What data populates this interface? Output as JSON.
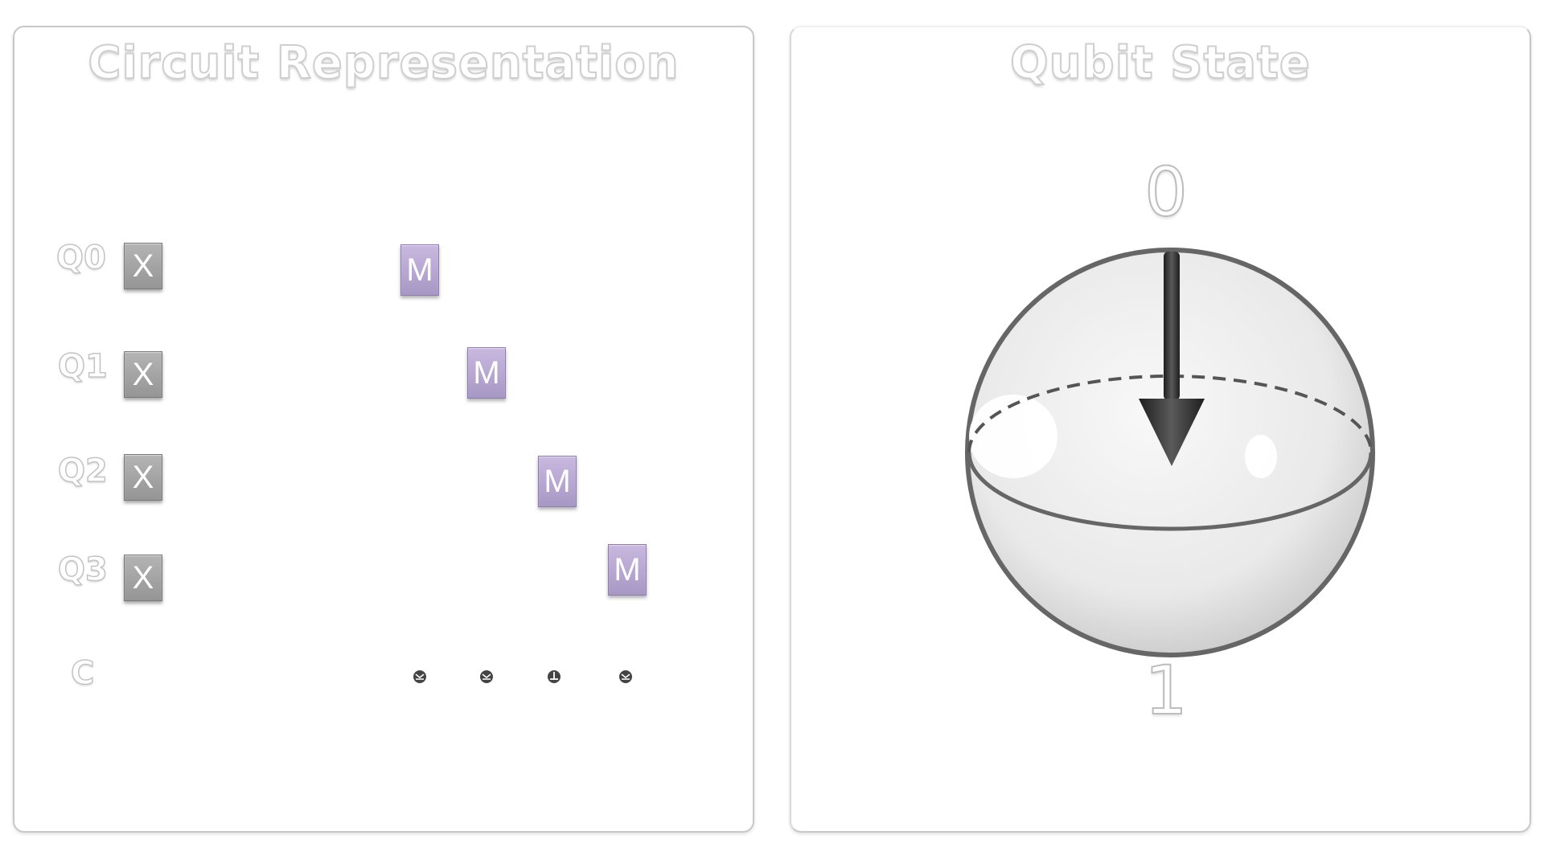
{
  "circuit": {
    "title": "Circuit Representation",
    "qubits": [
      {
        "label": "Q0",
        "gate": "X",
        "measure": "M"
      },
      {
        "label": "Q1",
        "gate": "X",
        "measure": "M"
      },
      {
        "label": "Q2",
        "gate": "X",
        "measure": "M"
      },
      {
        "label": "Q3",
        "gate": "X",
        "measure": "M"
      }
    ],
    "classical_label": "C"
  },
  "qubit_state": {
    "title": "Qubit State",
    "top_label": "0",
    "bottom_label": "1"
  },
  "colors": {
    "x_gate": "#a5a5a5",
    "measure_gate": "#b8a8d4",
    "sphere_outline": "#666666",
    "arrow": "#333333"
  }
}
